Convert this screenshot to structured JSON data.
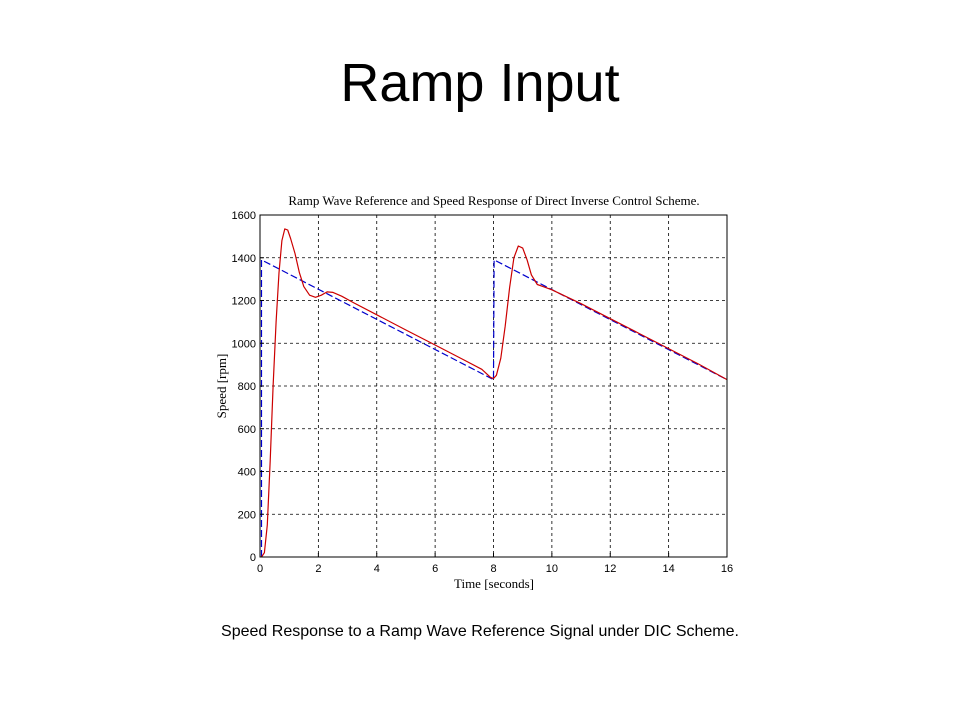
{
  "slide": {
    "title": "Ramp Input",
    "caption": "Speed Response to a Ramp Wave Reference Signal under DIC Scheme."
  },
  "chart_data": {
    "type": "line",
    "title": "Ramp Wave Reference and Speed Response of Direct Inverse Control Scheme.",
    "xlabel": "Time [seconds]",
    "ylabel": "Speed [rpm]",
    "xlim": [
      0,
      16
    ],
    "ylim": [
      0,
      1600
    ],
    "xticks": [
      0,
      2,
      4,
      6,
      8,
      10,
      12,
      14,
      16
    ],
    "yticks": [
      0,
      200,
      400,
      600,
      800,
      1000,
      1200,
      1400,
      1600
    ],
    "grid": true,
    "colors": {
      "reference": "#0000cc",
      "response": "#cc0000"
    },
    "series": [
      {
        "style": "dashed",
        "color": "#0000cc",
        "points": [
          [
            0.05,
            0
          ],
          [
            0.05,
            1390
          ],
          [
            8.0,
            830
          ],
          [
            8.02,
            1390
          ],
          [
            16.0,
            830
          ]
        ]
      },
      {
        "style": "solid",
        "color": "#cc0000",
        "points": [
          [
            0.05,
            0
          ],
          [
            0.15,
            20
          ],
          [
            0.25,
            150
          ],
          [
            0.35,
            450
          ],
          [
            0.45,
            800
          ],
          [
            0.55,
            1100
          ],
          [
            0.65,
            1330
          ],
          [
            0.75,
            1480
          ],
          [
            0.85,
            1535
          ],
          [
            0.95,
            1530
          ],
          [
            1.05,
            1490
          ],
          [
            1.2,
            1420
          ],
          [
            1.35,
            1330
          ],
          [
            1.5,
            1265
          ],
          [
            1.7,
            1225
          ],
          [
            1.9,
            1215
          ],
          [
            2.1,
            1225
          ],
          [
            2.3,
            1240
          ],
          [
            2.5,
            1238
          ],
          [
            2.8,
            1220
          ],
          [
            3.2,
            1190
          ],
          [
            4.0,
            1133
          ],
          [
            5.0,
            1062
          ],
          [
            6.0,
            992
          ],
          [
            7.0,
            921
          ],
          [
            7.6,
            878
          ],
          [
            7.9,
            840
          ],
          [
            8.0,
            835
          ],
          [
            8.1,
            850
          ],
          [
            8.25,
            930
          ],
          [
            8.4,
            1080
          ],
          [
            8.55,
            1260
          ],
          [
            8.7,
            1400
          ],
          [
            8.85,
            1455
          ],
          [
            9.0,
            1445
          ],
          [
            9.15,
            1390
          ],
          [
            9.3,
            1320
          ],
          [
            9.5,
            1275
          ],
          [
            9.7,
            1265
          ],
          [
            10.0,
            1250
          ],
          [
            11.0,
            1185
          ],
          [
            12.0,
            1115
          ],
          [
            13.0,
            1045
          ],
          [
            14.0,
            975
          ],
          [
            15.0,
            905
          ],
          [
            16.0,
            830
          ]
        ]
      }
    ]
  }
}
